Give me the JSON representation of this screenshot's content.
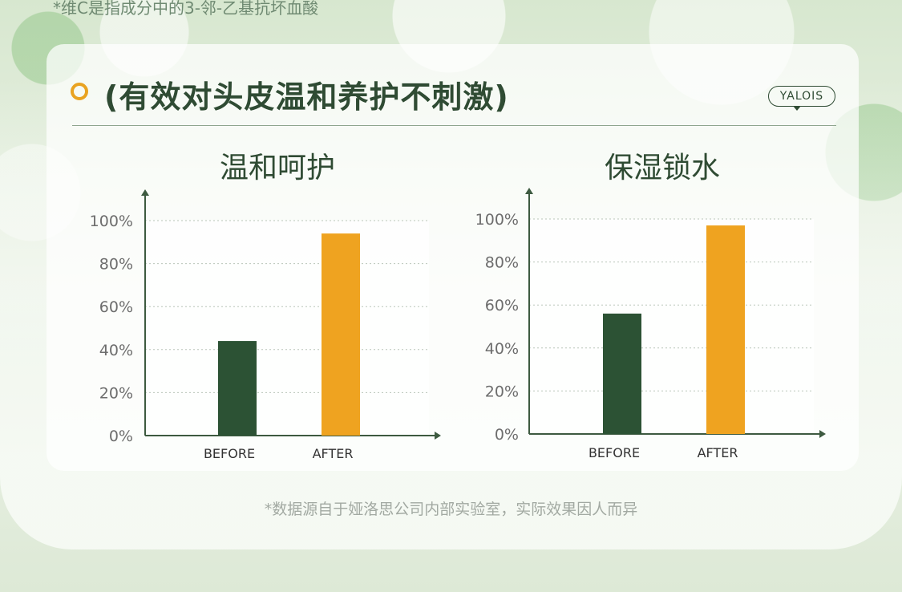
{
  "top_note": "*维C是指成分中的3-邻-乙基抗坏血酸",
  "header": {
    "title": "(有效对头皮温和养护不刺激)",
    "brand": "YALOIS"
  },
  "footnote": "*数据源自于娅洛思公司内部实验室，实际效果因人而异",
  "colors": {
    "before": "#2c5234",
    "after": "#efa320",
    "text": "#2f4b33"
  },
  "chart_data": [
    {
      "type": "bar",
      "title": "温和呵护",
      "categories": [
        "BEFORE",
        "AFTER"
      ],
      "values": [
        44,
        94
      ],
      "yticks": [
        "0%",
        "20%",
        "40%",
        "60%",
        "80%",
        "100%"
      ],
      "ylim": [
        0,
        100
      ],
      "grid": true
    },
    {
      "type": "bar",
      "title": "保湿锁水",
      "categories": [
        "BEFORE",
        "AFTER"
      ],
      "values": [
        56,
        97
      ],
      "yticks": [
        "0%",
        "20%",
        "40%",
        "60%",
        "80%",
        "100%"
      ],
      "ylim": [
        0,
        100
      ],
      "grid": true
    }
  ]
}
